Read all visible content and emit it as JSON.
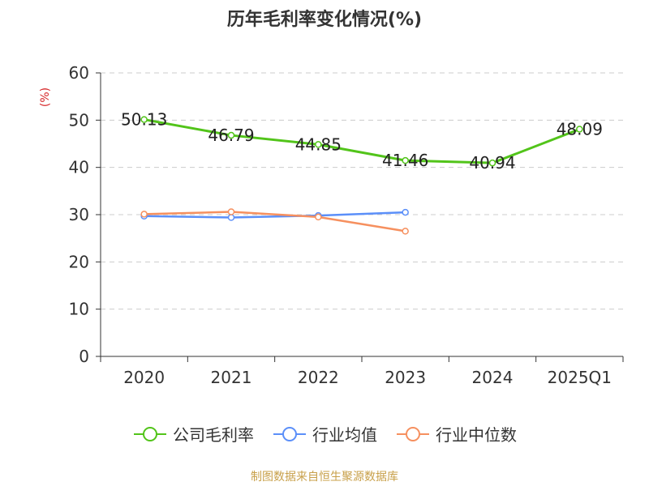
{
  "title": "历年毛利率变化情况(%)",
  "unit_label": "(%)",
  "footer": "制图数据来自恒生聚源数据库",
  "colors": {
    "company": "#52c41a",
    "industry_avg": "#5b8ff9",
    "industry_median": "#f6905f"
  },
  "chart_data": {
    "type": "line",
    "categories": [
      "2020",
      "2021",
      "2022",
      "2023",
      "2024",
      "2025Q1"
    ],
    "ylim": [
      0,
      60
    ],
    "yticks": [
      0,
      10,
      20,
      30,
      40,
      50,
      60
    ],
    "grid": true,
    "legend_position": "bottom",
    "series": [
      {
        "name": "公司毛利率",
        "values": [
          50.13,
          46.79,
          44.85,
          41.46,
          40.94,
          48.09
        ],
        "labels": [
          "50.13",
          "46.79",
          "44.85",
          "41.46",
          "40.94",
          "48.09"
        ]
      },
      {
        "name": "行业均值",
        "values": [
          29.7,
          29.4,
          29.8,
          30.5,
          null,
          null
        ]
      },
      {
        "name": "行业中位数",
        "values": [
          30.1,
          30.6,
          29.5,
          26.5,
          null,
          null
        ]
      }
    ]
  }
}
